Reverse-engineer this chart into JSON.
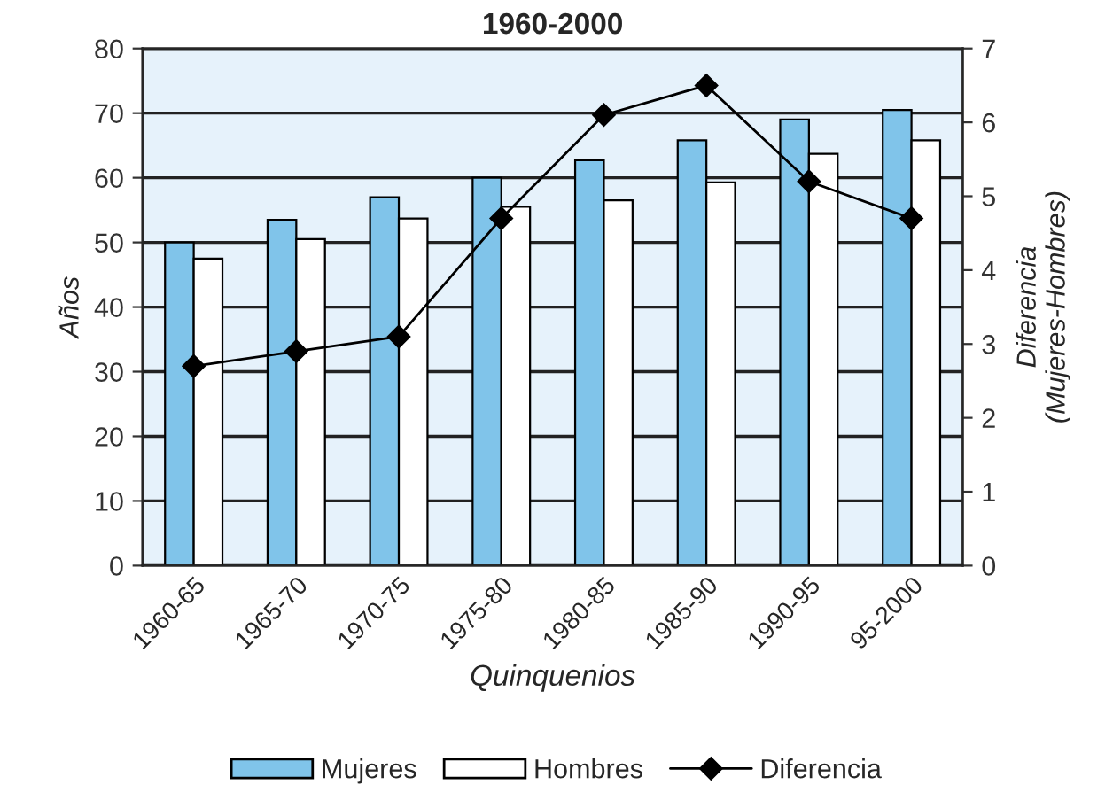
{
  "chart_data": {
    "type": "bar",
    "title": "1960-2000",
    "xlabel": "Quinquenios",
    "ylabel": "Años",
    "y2label": "Diferencia\n(Mujeres-Hombres)",
    "categories": [
      "1960-65",
      "1965-70",
      "1970-75",
      "1975-80",
      "1980-85",
      "1985-90",
      "1990-95",
      "95-2000"
    ],
    "series": [
      {
        "name": "Mujeres",
        "color": "#80c4ea",
        "values": [
          50,
          53.5,
          57,
          60,
          62.7,
          65.8,
          69,
          70.5
        ]
      },
      {
        "name": "Hombres",
        "color": "#ffffff",
        "values": [
          47.5,
          50.5,
          53.7,
          55.5,
          56.5,
          59.3,
          63.7,
          65.8
        ]
      },
      {
        "name": "Diferencia",
        "type": "line",
        "axis": "y2",
        "color": "#000000",
        "marker": "diamond",
        "values": [
          2.7,
          2.9,
          3.1,
          4.7,
          6.1,
          6.5,
          5.2,
          4.7
        ]
      }
    ],
    "ylim": [
      0,
      80
    ],
    "yticks": [
      0,
      10,
      20,
      30,
      40,
      50,
      60,
      70,
      80
    ],
    "y2lim": [
      0,
      7
    ],
    "y2ticks": [
      0,
      1,
      2,
      3,
      4,
      5,
      6,
      7
    ],
    "grid": "y",
    "legend": "bottom"
  }
}
